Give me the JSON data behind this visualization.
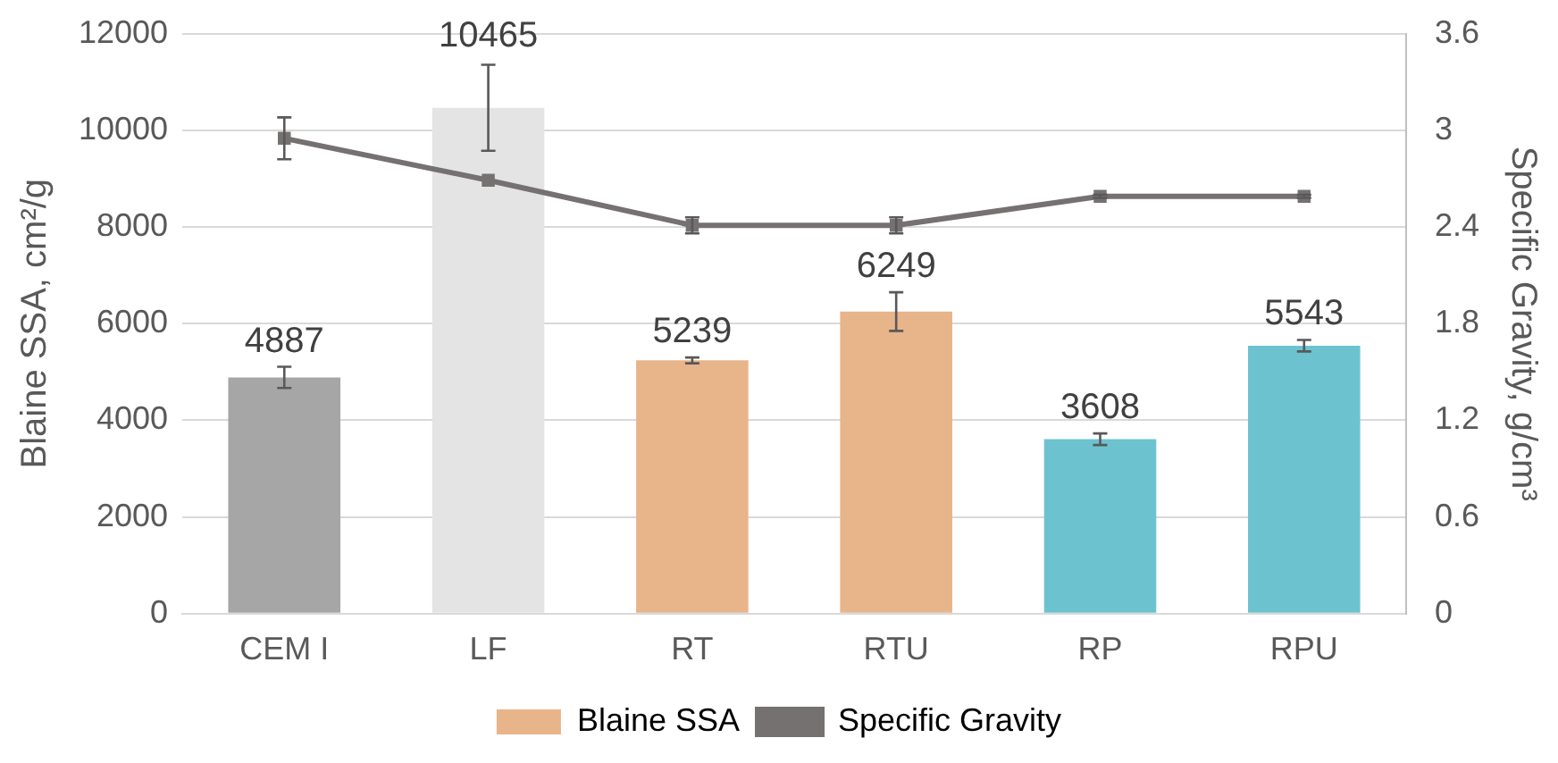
{
  "chart_data": {
    "type": "bar",
    "categories": [
      "CEM I",
      "LF",
      "RT",
      "RTU",
      "RP",
      "RPU"
    ],
    "ylabel": "Blaine SSA, cm²/g",
    "y2label": "Specific Gravity, g/cm³",
    "ylim": [
      0,
      12000
    ],
    "yticks": [
      0,
      2000,
      4000,
      6000,
      8000,
      10000,
      12000
    ],
    "y2lim": [
      0,
      3.6
    ],
    "y2ticks": [
      0,
      0.6,
      1.2,
      1.8,
      2.4,
      3,
      3.6
    ],
    "grid": "y",
    "legend": "bottom",
    "series": [
      {
        "name": "Blaine SSA",
        "color": "#e8b48a",
        "colors": [
          "#a6a6a6",
          "#e4e4e4",
          "#e8b48a",
          "#e8b48a",
          "#6cc3cf",
          "#6cc3cf"
        ],
        "values": [
          4887,
          10465,
          5239,
          6249,
          3608,
          5543
        ],
        "errors": [
          220,
          890,
          60,
          400,
          120,
          120
        ],
        "value_labels": [
          "4887",
          "10465",
          "5239",
          "6249",
          "3608",
          "5543"
        ]
      },
      {
        "name": "Specific Gravity",
        "type": "line",
        "axis": "y2",
        "color": "#767171",
        "marker": "square",
        "values": [
          2.95,
          2.69,
          2.41,
          2.41,
          2.59,
          2.59
        ],
        "errors": [
          0.13,
          null,
          0.05,
          0.05,
          0.01,
          0.01
        ]
      }
    ]
  }
}
